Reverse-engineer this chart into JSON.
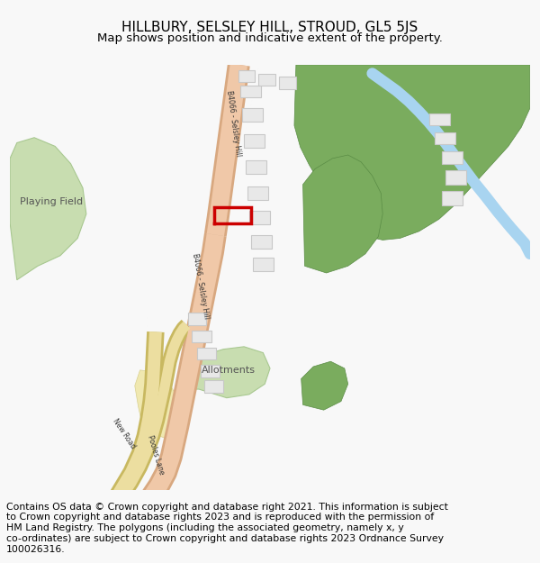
{
  "title": "HILLBURY, SELSLEY HILL, STROUD, GL5 5JS",
  "subtitle": "Map shows position and indicative extent of the property.",
  "footer_lines": [
    "Contains OS data © Crown copyright and database right 2021. This information is subject",
    "to Crown copyright and database rights 2023 and is reproduced with the permission of",
    "HM Land Registry. The polygons (including the associated geometry, namely x, y",
    "co-ordinates) are subject to Crown copyright and database rights 2023 Ordnance Survey",
    "100026316."
  ],
  "bg_color": "#f8f8f8",
  "map_bg": "#f9f9f7",
  "road_main_fill": "#f0c8a8",
  "road_main_edge": "#d8a880",
  "road_yellow_fill": "#ecdea0",
  "road_yellow_edge": "#c8b860",
  "green_light": "#c8ddb0",
  "green_dark": "#7aac5e",
  "blue_water": "#a8d4f0",
  "building_fill": "#e8e8e8",
  "building_edge": "#c8c8c8",
  "highlight_red": "#cc0000",
  "label_dark": "#333333",
  "title_fontsize": 11,
  "subtitle_fontsize": 9.5,
  "footer_fontsize": 7.8,
  "road_label_fontsize": 5.5,
  "area_label_fontsize": 8
}
